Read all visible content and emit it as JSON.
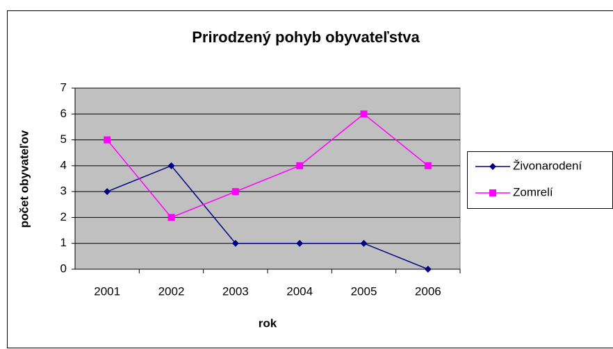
{
  "chart_data": {
    "type": "line",
    "title": "Prirodzený pohyb obyvateľstva",
    "x_label": "rok",
    "y_label": "počet obyvateľov",
    "categories": [
      "2001",
      "2002",
      "2003",
      "2004",
      "2005",
      "2006"
    ],
    "series": [
      {
        "name": "Živonarodení",
        "color": "#000080",
        "marker": "diamond",
        "values": [
          3,
          4,
          1,
          1,
          1,
          0
        ]
      },
      {
        "name": "Zomrelí",
        "color": "#ff00ff",
        "marker": "square",
        "values": [
          5,
          2,
          3,
          4,
          6,
          4
        ]
      }
    ],
    "ylim": [
      0,
      7
    ],
    "yticks": [
      0,
      1,
      2,
      3,
      4,
      5,
      6,
      7
    ],
    "grid": true,
    "legend": "right"
  }
}
